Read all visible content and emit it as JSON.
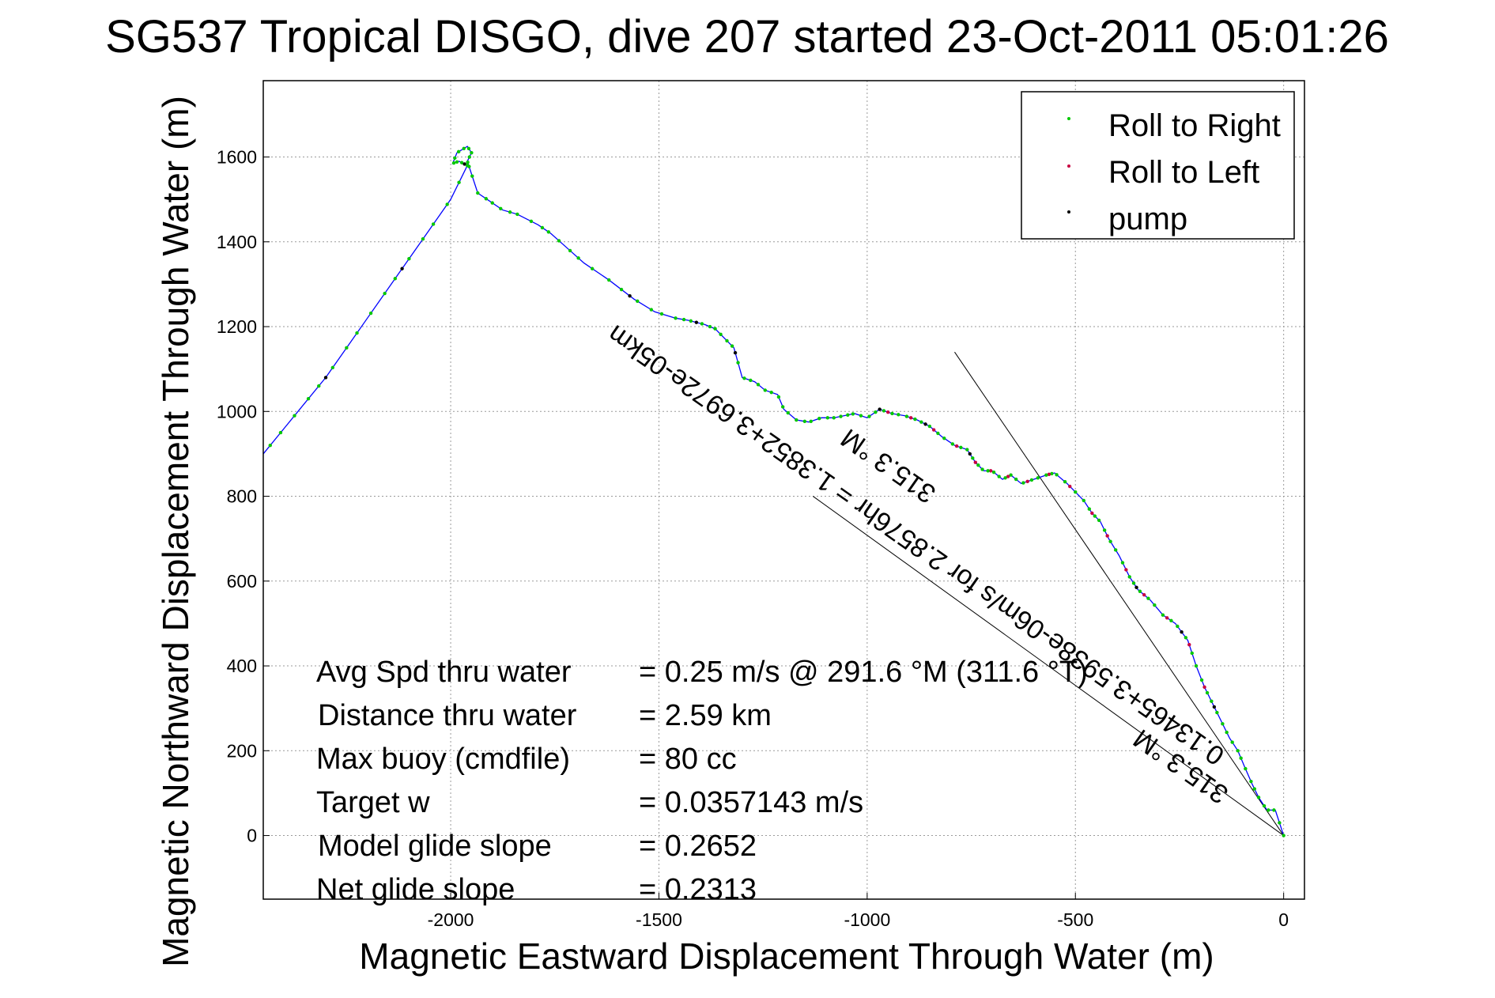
{
  "chart_data": {
    "type": "line",
    "title": "SG537 Tropical DISGO, dive 207 started 23-Oct-2011 05:01:26",
    "xlabel": "Magnetic Eastward Displacement Through Water (m)",
    "ylabel": "Magnetic Northward Displacement Through Water (m)",
    "xlim": [
      -2450,
      50
    ],
    "ylim": [
      -150,
      1780
    ],
    "xticks": [
      -2000,
      -1500,
      -1000,
      -500,
      0
    ],
    "yticks": [
      0,
      200,
      400,
      600,
      800,
      1000,
      1200,
      1400,
      1600
    ],
    "grid": true,
    "legend_position": "top-right",
    "colors": {
      "track": "#0000ff",
      "roll_right": "#00c800",
      "roll_left": "#c80040",
      "pump": "#000000",
      "reference": "#000000",
      "grid": "#9a9a9a"
    },
    "legend": [
      {
        "label": "Roll to Right",
        "color": "#00c800"
      },
      {
        "label": "Roll to Left",
        "color": "#c80040"
      },
      {
        "label": "pump",
        "color": "#000000"
      }
    ],
    "track": {
      "name": "",
      "x": [
        0,
        -20,
        -40,
        -60,
        -75,
        -95,
        -110,
        -130,
        -150,
        -170,
        -190,
        -210,
        -230,
        -260,
        -290,
        -320,
        -350,
        -370,
        -395,
        -420,
        -440,
        -460,
        -480,
        -520,
        -550,
        -570,
        -600,
        -630,
        -655,
        -675,
        -700,
        -720,
        -740,
        -760,
        -790,
        -820,
        -850,
        -880,
        -910,
        -940,
        -970,
        -1000,
        -1030,
        -1055,
        -1080,
        -1110,
        -1140,
        -1170,
        -1200,
        -1215,
        -1245,
        -1270,
        -1300,
        -1320,
        -1345,
        -1365,
        -1390,
        -1430,
        -1460,
        -1510,
        -1560,
        -1620,
        -1680,
        -1720,
        -1760,
        -1790,
        -1840,
        -1875,
        -1905,
        -1935,
        -1955,
        -1960,
        -1950,
        -1960,
        -1985,
        -1995,
        -1980,
        -1960,
        -2000,
        -2050,
        -2100,
        -2150,
        -2200,
        -2250,
        -2300,
        -2350,
        -2400,
        -2450
      ],
      "y": [
        0,
        60,
        60,
        90,
        120,
        165,
        200,
        230,
        270,
        310,
        350,
        400,
        460,
        500,
        520,
        555,
        580,
        610,
        660,
        700,
        740,
        760,
        790,
        830,
        855,
        850,
        840,
        830,
        850,
        840,
        860,
        860,
        880,
        910,
        920,
        940,
        965,
        980,
        990,
        995,
        1005,
        985,
        995,
        990,
        985,
        985,
        975,
        980,
        1005,
        1040,
        1050,
        1070,
        1080,
        1150,
        1175,
        1195,
        1205,
        1215,
        1220,
        1235,
        1265,
        1310,
        1350,
        1385,
        1420,
        1440,
        1465,
        1475,
        1495,
        1515,
        1575,
        1590,
        1610,
        1625,
        1610,
        1585,
        1590,
        1580,
        1500,
        1430,
        1360,
        1290,
        1220,
        1150,
        1080,
        1020,
        960,
        900
      ]
    },
    "reference_lines": [
      {
        "x": [
          0,
          -790
        ],
        "y": [
          0,
          1140
        ]
      },
      {
        "x": [
          0,
          -1130
        ],
        "y": [
          0,
          800
        ]
      }
    ],
    "legend_items_label": "",
    "annotations": [
      "Avg Spd thru water",
      "=  0.25 m/s @ 291.6 °M (311.6 °T)",
      "Distance thru water",
      "=  2.59 km",
      "Max buoy (cmdfile)",
      "= 80 cc",
      "Target w",
      "= 0.0357143 m/s",
      "Model glide slope",
      "= 0.2652",
      "Net glide slope",
      "= 0.2313"
    ],
    "rotated_annotations": [
      "315.3 °M",
      "0.13465+3.5938e-06m/s for 2.8576hr = 1.3852+3.6972e-05km",
      "315.3 °M"
    ]
  }
}
